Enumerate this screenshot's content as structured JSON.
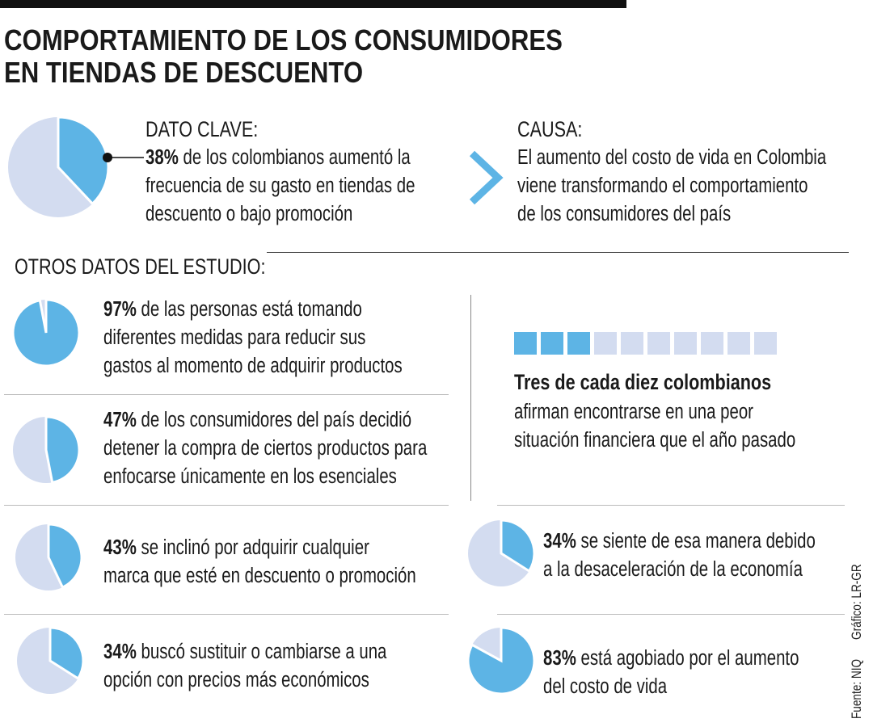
{
  "title": {
    "line1": "COMPORTAMIENTO DE LOS CONSUMIDORES",
    "line2": "EN TIENDAS DE DESCUENTO"
  },
  "colors": {
    "accent": "#5db4e5",
    "light": "#d3dcf0",
    "text": "#1a1a1a"
  },
  "key": {
    "heading": "DATO CLAVE:",
    "pct": "38%",
    "line1": " de los colombianos aumentó la",
    "line2": "frecuencia de su gasto en tiendas de",
    "line3": "descuento o bajo promoción"
  },
  "cause": {
    "heading": "CAUSA:",
    "line1": "El aumento del costo de vida en Colombia",
    "line2": "viene transformando el comportamiento",
    "line3": "de los consumidores del país"
  },
  "others_heading": "OTROS DATOS DEL ESTUDIO:",
  "items": [
    {
      "pct": "97%",
      "lines": [
        " de las personas está tomando",
        "diferentes medidas para reducir sus",
        "gastos al momento de adquirir productos"
      ]
    },
    {
      "pct": "47%",
      "lines": [
        " de los consumidores del país decidió",
        "detener la compra de ciertos productos para",
        "enfocarse únicamente en los esenciales"
      ]
    },
    {
      "pct": "43%",
      "lines": [
        " se inclinó por adquirir cualquier",
        "marca que esté en descuento o promoción"
      ]
    },
    {
      "pct": "34%",
      "lines": [
        " buscó sustituir o cambiarse a una",
        "opción con precios más económicos"
      ]
    },
    {
      "pct": "34%",
      "lines": [
        " se siente de esa manera debido",
        "a la desaceleración de la economía"
      ]
    },
    {
      "pct": "83%",
      "lines": [
        " está agobiado por el aumento",
        "del costo de vida"
      ]
    }
  ],
  "ratio": {
    "filled": 3,
    "total": 10,
    "heading": "Tres de cada diez colombianos",
    "line1": "afirman encontrarse en una peor",
    "line2": "situación financiera que el año pasado"
  },
  "credits": {
    "source": "Fuente: NIQ",
    "graphic": "Gráfico: LR-GR"
  },
  "chart_data": {
    "type": "pie",
    "charts": [
      {
        "label": "Aumentó frecuencia de gasto en tiendas de descuento",
        "value": 38
      },
      {
        "label": "Tomando medidas para reducir gastos",
        "value": 97
      },
      {
        "label": "Detuvo compra de ciertos productos",
        "value": 47
      },
      {
        "label": "Adquiere cualquier marca en descuento",
        "value": 43
      },
      {
        "label": "Buscó sustituir por opción más económica",
        "value": 34
      },
      {
        "label": "Por desaceleración de la economía",
        "value": 34
      },
      {
        "label": "Agobiado por aumento del costo de vida",
        "value": 83
      }
    ],
    "waffle": {
      "label": "Tres de cada diez colombianos en peor situación financiera",
      "value": 3,
      "total": 10
    }
  }
}
